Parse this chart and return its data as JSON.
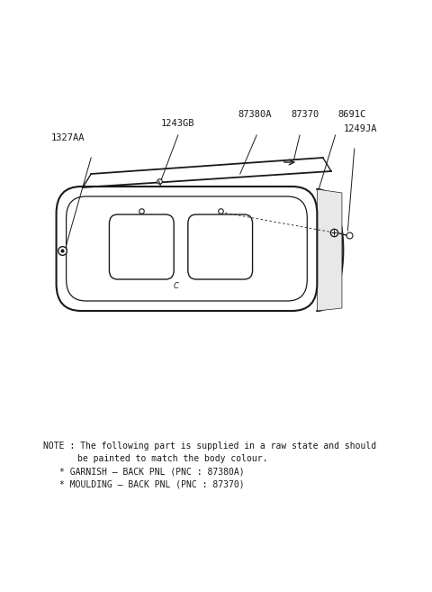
{
  "bg_color": "#ffffff",
  "line_color": "#1a1a1a",
  "fig_width": 4.8,
  "fig_height": 6.57,
  "dpi": 100,
  "note_line1": "NOTE : The following part is supplied in a raw state and should",
  "note_line2": "         be painted to match the body colour.",
  "note_line3": "    * GARNISH – BACK PNL (PNC : 87380A)",
  "note_line4": "    * MOULDING – BACK PNL (PNC : 87370)"
}
